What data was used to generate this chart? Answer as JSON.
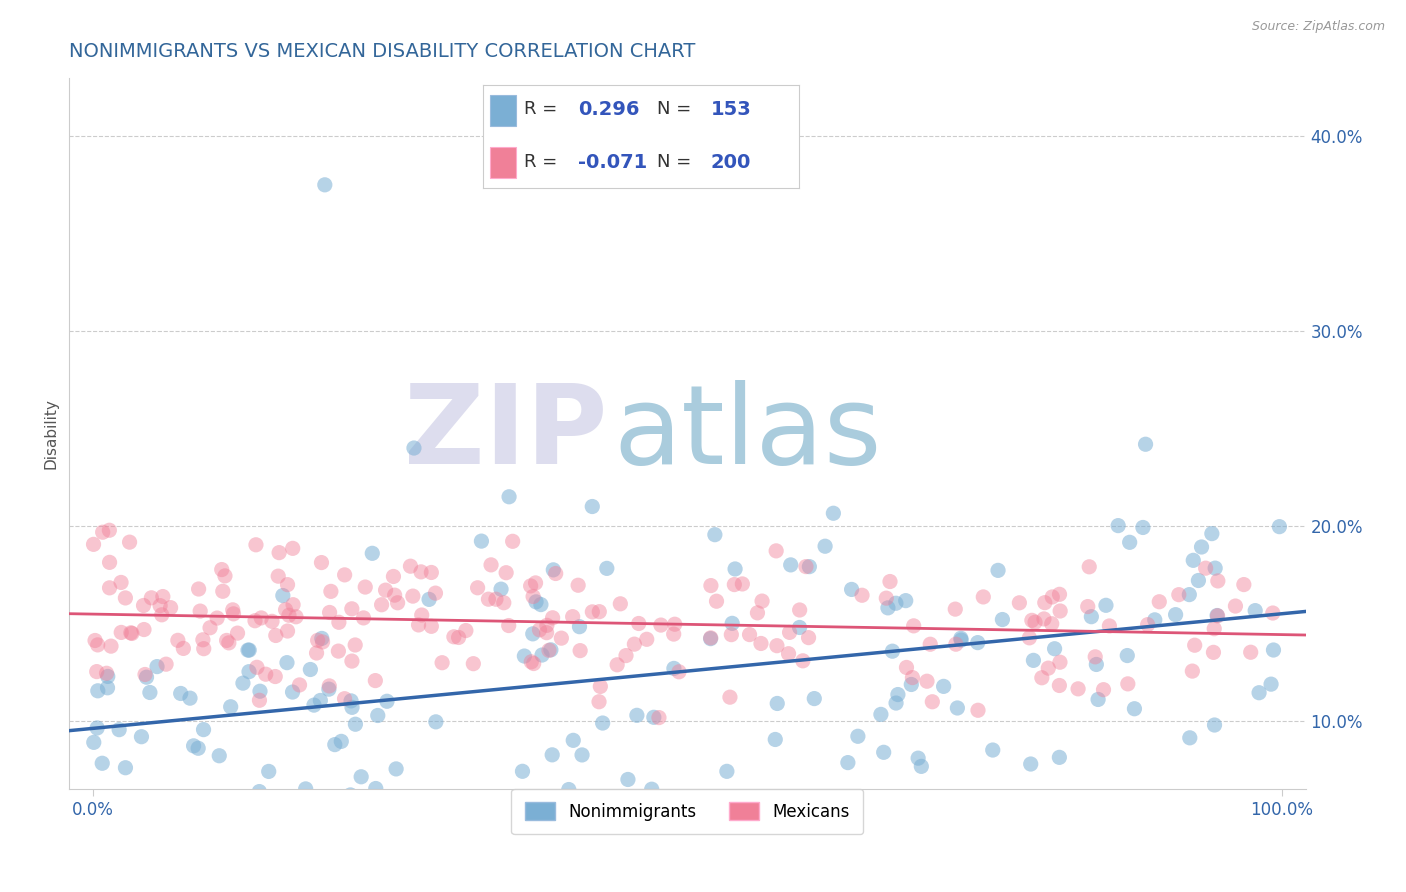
{
  "title": "NONIMMIGRANTS VS MEXICAN DISABILITY CORRELATION CHART",
  "source_text": "Source: ZipAtlas.com",
  "ylabel": "Disability",
  "xlim": [
    -0.02,
    1.02
  ],
  "ylim": [
    0.065,
    0.43
  ],
  "yticks": [
    0.1,
    0.2,
    0.3,
    0.4
  ],
  "ytick_labels": [
    "10.0%",
    "20.0%",
    "30.0%",
    "40.0%"
  ],
  "xticks": [
    0.0,
    1.0
  ],
  "xtick_labels": [
    "0.0%",
    "100.0%"
  ],
  "blue_R": 0.296,
  "blue_N": 153,
  "pink_R": -0.071,
  "pink_N": 200,
  "blue_color": "#7BAFD4",
  "pink_color": "#F08098",
  "blue_line_color": "#3366AA",
  "pink_line_color": "#DD5577",
  "watermark_zip": "ZIP",
  "watermark_atlas": "atlas",
  "watermark_zip_color": "#DDDDEE",
  "watermark_atlas_color": "#AACCDD",
  "background_color": "#FFFFFF",
  "legend_label_blue": "Nonimmigrants",
  "legend_label_pink": "Mexicans",
  "title_color": "#336699",
  "title_fontsize": 14,
  "grid_color": "#CCCCCC",
  "grid_linestyle": "--",
  "text_color_dark": "#333333",
  "text_color_blue": "#3355BB",
  "label_color": "#3366AA"
}
